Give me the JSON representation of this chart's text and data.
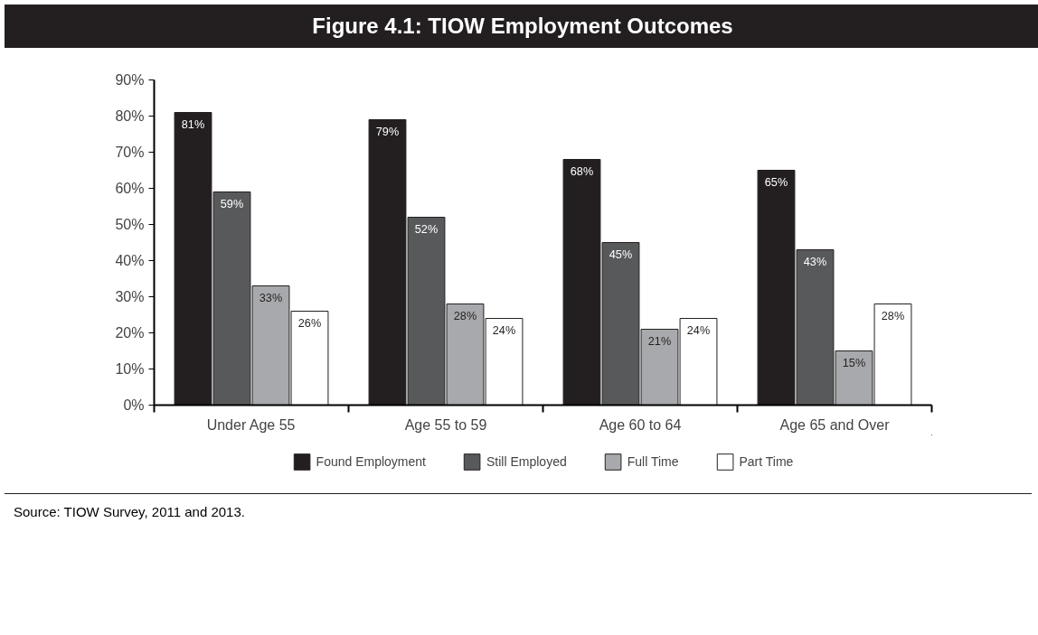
{
  "chart_data": {
    "type": "bar",
    "title": "Figure 4.1: TIOW Employment Outcomes",
    "categories": [
      "Under Age 55",
      "Age 55 to 59",
      "Age 60 to 64",
      "Age 65 and Over"
    ],
    "series": [
      {
        "name": "Found Employment",
        "color": "#231f20",
        "values": [
          81,
          79,
          68,
          65
        ],
        "value_labels": [
          "81%",
          "79%",
          "68%",
          "65%"
        ]
      },
      {
        "name": "Still Employed",
        "color": "#58595b",
        "values": [
          59,
          52,
          45,
          43
        ],
        "value_labels": [
          "59%",
          "52%",
          "45%",
          "43%"
        ]
      },
      {
        "name": "Full Time",
        "color": "#a7a9ac",
        "values": [
          33,
          28,
          21,
          15
        ],
        "value_labels": [
          "33%",
          "28%",
          "21%",
          "15%"
        ]
      },
      {
        "name": "Part Time",
        "color": "#ffffff",
        "values": [
          26,
          24,
          24,
          28
        ],
        "value_labels": [
          "26%",
          "24%",
          "24%",
          "28%"
        ]
      }
    ],
    "ylim": [
      0,
      90
    ],
    "yticks": [
      {
        "value": 0,
        "label": "0%"
      },
      {
        "value": 10,
        "label": "10%"
      },
      {
        "value": 20,
        "label": "20%"
      },
      {
        "value": 30,
        "label": "30%"
      },
      {
        "value": 40,
        "label": "40%"
      },
      {
        "value": 50,
        "label": "50%"
      },
      {
        "value": 60,
        "label": "60%"
      },
      {
        "value": 70,
        "label": "70%"
      },
      {
        "value": 80,
        "label": "80%"
      },
      {
        "value": 90,
        "label": "90%"
      }
    ],
    "grid": false,
    "legend": "bottom",
    "annotations": [
      "Source: TIOW Survey, 2011 and 2013."
    ]
  }
}
